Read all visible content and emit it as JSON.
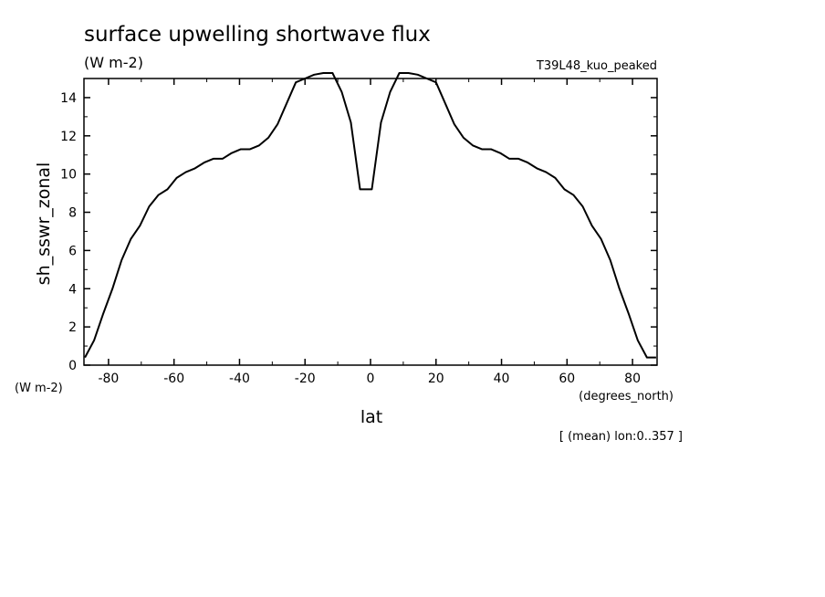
{
  "chart_data": {
    "type": "line",
    "title": "surface upwelling shortwave flux",
    "units": "(W m-2)",
    "run_label": "T39L48_kuo_peaked",
    "ylabel": "sh_sswr_zonal",
    "y_units": "(W m-2)",
    "xlabel": "lat",
    "x_units": "(degrees_north)",
    "footnote": "[ (mean) lon:0..357 ]",
    "xlim": [
      -87.5,
      87.5
    ],
    "ylim": [
      0,
      15
    ],
    "x_ticks": [
      -80,
      -60,
      -40,
      -20,
      0,
      20,
      40,
      60,
      80
    ],
    "x_tick_labels": [
      "-80",
      "-60",
      "-40",
      "-20",
      "0",
      "20",
      "40",
      "60",
      "80"
    ],
    "y_ticks": [
      0,
      2,
      4,
      6,
      8,
      10,
      12,
      14
    ],
    "y_tick_labels": [
      "0",
      "2",
      "4",
      "6",
      "8",
      "10",
      "12",
      "14"
    ],
    "grid": false,
    "series": [
      {
        "x": [
          -87.2,
          -84.4,
          -81.6,
          -78.8,
          -76.0,
          -73.2,
          -70.4,
          -67.6,
          -64.8,
          -62.0,
          -59.2,
          -56.4,
          -53.6,
          -50.8,
          -48.0,
          -45.2,
          -42.4,
          -39.6,
          -36.8,
          -34.0,
          -31.2,
          -28.4,
          -25.6,
          -22.8,
          -20.0,
          -17.2,
          -14.4,
          -11.6,
          -8.8,
          -6.0,
          -3.2,
          -0.4,
          0.4,
          3.2,
          6.0,
          8.8,
          11.6,
          14.4,
          17.2,
          20.0,
          22.8,
          25.6,
          28.4,
          31.2,
          34.0,
          36.8,
          39.6,
          42.4,
          45.2,
          48.0,
          50.8,
          53.6,
          56.4,
          59.2,
          62.0,
          64.8,
          67.6,
          70.4,
          73.2,
          76.0,
          78.8,
          81.6,
          84.4,
          87.2
        ],
        "y": [
          0.4,
          1.3,
          2.7,
          4.0,
          5.5,
          6.6,
          7.3,
          8.3,
          8.9,
          9.2,
          9.8,
          10.1,
          10.3,
          10.6,
          10.8,
          10.8,
          11.1,
          11.3,
          11.3,
          11.5,
          11.9,
          12.6,
          13.7,
          14.8,
          15.0,
          15.2,
          15.4,
          15.4,
          14.3,
          12.7,
          9.2,
          9.2,
          9.2,
          12.7,
          14.3,
          15.4,
          15.4,
          15.2,
          15.0,
          14.8,
          13.7,
          12.6,
          11.9,
          11.5,
          11.3,
          11.3,
          11.1,
          10.8,
          10.8,
          10.6,
          10.3,
          10.1,
          9.8,
          9.2,
          8.9,
          8.3,
          7.3,
          6.6,
          5.5,
          4.0,
          2.7,
          1.3,
          0.4,
          0.4
        ]
      }
    ]
  }
}
